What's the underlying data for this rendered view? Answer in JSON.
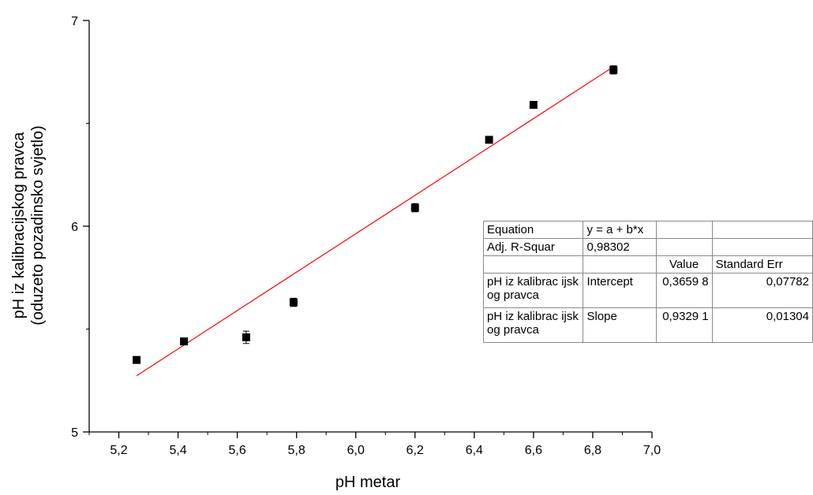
{
  "chart_data": {
    "type": "scatter",
    "xlabel": "pH metar",
    "ylabel_line1": "pH iz kalibracijskog pravca",
    "ylabel_line2": "(oduzeto pozadinsko svjetlo)",
    "xlim": [
      5.1,
      7.0
    ],
    "ylim": [
      5,
      7
    ],
    "x_ticks": [
      "5,2",
      "5,4",
      "5,6",
      "5,8",
      "6,0",
      "6,2",
      "6,4",
      "6,6",
      "6,8",
      "7,0"
    ],
    "y_ticks": [
      "5",
      "6",
      "7"
    ],
    "points": [
      {
        "x": 5.26,
        "y": 5.35,
        "err": 0.01
      },
      {
        "x": 5.42,
        "y": 5.44,
        "err": 0.01
      },
      {
        "x": 5.63,
        "y": 5.46,
        "err": 0.03
      },
      {
        "x": 5.79,
        "y": 5.63,
        "err": 0.02
      },
      {
        "x": 6.2,
        "y": 6.09,
        "err": 0.02
      },
      {
        "x": 6.45,
        "y": 6.42,
        "err": 0.01
      },
      {
        "x": 6.6,
        "y": 6.59,
        "err": 0.01
      },
      {
        "x": 6.87,
        "y": 6.76,
        "err": 0.02
      }
    ],
    "fit_line": {
      "intercept": 0.36598,
      "slope": 0.93291,
      "x_range": [
        5.26,
        6.87
      ],
      "color": "#ff0000"
    },
    "marker_color": "#000000"
  },
  "fit_table": {
    "rows": [
      [
        "Equation",
        "y = a + b*x",
        "",
        ""
      ],
      [
        "Adj. R-Squar",
        "0,98302",
        "",
        ""
      ],
      [
        "",
        "",
        "Value",
        "Standard Err"
      ],
      [
        "pH iz kalibrac ijskog pravca",
        "Intercept",
        "0,3659 8",
        "0,07782"
      ],
      [
        "pH iz kalibrac ijskog pravca",
        "Slope",
        "0,9329 1",
        "0,01304"
      ]
    ]
  }
}
